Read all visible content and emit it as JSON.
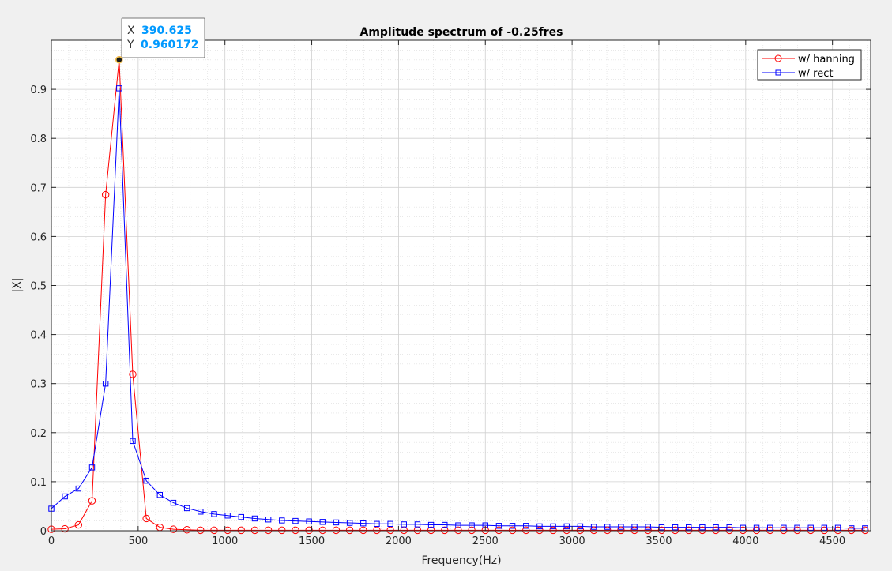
{
  "chart_data": {
    "type": "line",
    "title": "Amplitude spectrum of -0.25fres",
    "xlabel": "Frequency(Hz)",
    "ylabel": "|X|",
    "xlim": [
      0,
      4720
    ],
    "ylim": [
      0,
      1.0
    ],
    "grid": true,
    "minor_grid": true,
    "legend_position": "top-right",
    "x_ticks": [
      0,
      500,
      1000,
      1500,
      2000,
      2500,
      3000,
      3500,
      4000,
      4500
    ],
    "x_tick_labels": [
      "0",
      "500",
      "1000",
      "1500",
      "2000",
      "2500",
      "3000",
      "3500",
      "4000",
      "4500"
    ],
    "y_ticks": [
      0,
      0.1,
      0.2,
      0.3,
      0.4,
      0.5,
      0.6,
      0.7,
      0.8,
      0.9
    ],
    "y_tick_labels": [
      "0",
      "0.1",
      "0.2",
      "0.3",
      "0.4",
      "0.5",
      "0.6",
      "0.7",
      "0.8",
      "0.9"
    ],
    "x_step": 78.125,
    "series": [
      {
        "name": "w/ hanning",
        "color": "#ff0000",
        "marker": "circle",
        "values": [
          0.003,
          0.004,
          0.012,
          0.061,
          0.685,
          0.960172,
          0.319,
          0.025,
          0.007,
          0.003,
          0.002,
          0.001,
          0.001,
          0.001,
          0.001,
          0.001,
          0.001,
          0.001,
          0.001,
          0.001,
          0.001,
          0.001,
          0.001,
          0.001,
          0.001,
          0.001,
          0.001,
          0.001,
          0.001,
          0.001,
          0.001,
          0.001,
          0.001,
          0.001,
          0.001,
          0.001,
          0.001,
          0.001,
          0.001,
          0.001,
          0.001,
          0.001,
          0.001,
          0.001,
          0.001,
          0.001,
          0.001,
          0.001,
          0.001,
          0.001,
          0.001,
          0.001,
          0.001,
          0.001,
          0.001,
          0.001,
          0.001,
          0.001,
          0.001,
          0.001,
          0.001
        ]
      },
      {
        "name": "w/ rect",
        "color": "#0000ff",
        "marker": "square",
        "values": [
          0.045,
          0.07,
          0.086,
          0.129,
          0.3,
          0.902,
          0.183,
          0.102,
          0.073,
          0.057,
          0.046,
          0.039,
          0.034,
          0.031,
          0.028,
          0.025,
          0.023,
          0.021,
          0.02,
          0.019,
          0.018,
          0.017,
          0.016,
          0.015,
          0.014,
          0.014,
          0.013,
          0.013,
          0.012,
          0.012,
          0.011,
          0.011,
          0.011,
          0.01,
          0.01,
          0.01,
          0.009,
          0.009,
          0.009,
          0.009,
          0.008,
          0.008,
          0.008,
          0.008,
          0.008,
          0.007,
          0.007,
          0.007,
          0.007,
          0.007,
          0.007,
          0.006,
          0.006,
          0.006,
          0.006,
          0.006,
          0.006,
          0.006,
          0.006,
          0.005,
          0.005
        ]
      }
    ],
    "datatip": {
      "x_label": "X",
      "x_value": "390.625",
      "y_label": "Y",
      "y_value": "0.960172",
      "x": 390.625,
      "y": 0.960172,
      "value_color": "#0099ff"
    }
  }
}
